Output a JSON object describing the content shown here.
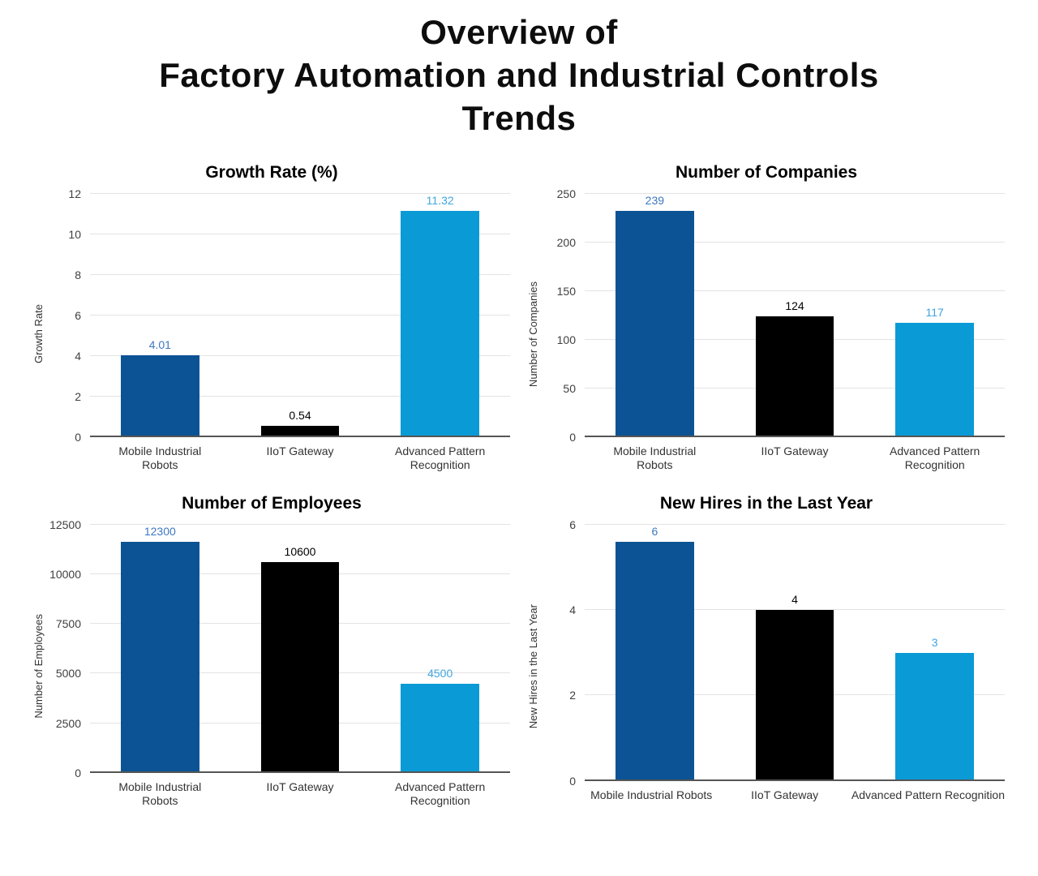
{
  "page_title": {
    "lines": [
      "Overview of",
      "Factory Automation and Industrial Controls",
      "Trends"
    ]
  },
  "colors": {
    "bar_dark_blue": "#0b5394",
    "bar_black": "#000000",
    "bar_light_blue": "#0a9ad6",
    "annotation_dark_blue": "#3d78c2",
    "annotation_black": "#000000",
    "annotation_light_blue": "#3fa5df",
    "gridline": "#e3e3e3",
    "axis_line": "#555555",
    "tick_text": "#404040",
    "category_text": "#333333"
  },
  "chart_data": [
    {
      "type": "bar",
      "title": "Growth Rate (%)",
      "ylabel": "Growth Rate",
      "xlabel": "",
      "categories": [
        "Mobile Industrial Robots",
        "IIoT Gateway",
        "Advanced Pattern Recognition"
      ],
      "values": [
        4.01,
        0.54,
        11.32
      ],
      "value_labels": [
        "4.01",
        "0.54",
        "11.32"
      ],
      "ylim": [
        0,
        12
      ],
      "yticks": [
        0,
        2,
        4,
        6,
        8,
        10,
        12
      ],
      "grid": true,
      "legend": "none",
      "bar_colors": [
        "#0b5394",
        "#000000",
        "#0a9ad6"
      ],
      "label_colors": [
        "#3d78c2",
        "#000000",
        "#3fa5df"
      ],
      "x_labels_nowrap": false
    },
    {
      "type": "bar",
      "title": "Number of Companies",
      "ylabel": "Number of Companies",
      "xlabel": "",
      "categories": [
        "Mobile Industrial Robots",
        "IIoT Gateway",
        "Advanced Pattern Recognition"
      ],
      "values": [
        239,
        124,
        117
      ],
      "value_labels": [
        "239",
        "124",
        "117"
      ],
      "ylim": [
        0,
        250
      ],
      "yticks": [
        0,
        50,
        100,
        150,
        200,
        250
      ],
      "grid": true,
      "legend": "none",
      "bar_colors": [
        "#0b5394",
        "#000000",
        "#0a9ad6"
      ],
      "label_colors": [
        "#3d78c2",
        "#000000",
        "#3fa5df"
      ],
      "x_labels_nowrap": false
    },
    {
      "type": "bar",
      "title": "Number of Employees",
      "ylabel": "Number of Employees",
      "xlabel": "",
      "categories": [
        "Mobile Industrial Robots",
        "IIoT Gateway",
        "Advanced Pattern Recognition"
      ],
      "values": [
        12300,
        10600,
        4500
      ],
      "value_labels": [
        "12300",
        "10600",
        "4500"
      ],
      "ylim": [
        0,
        12500
      ],
      "yticks": [
        0,
        2500,
        5000,
        7500,
        10000,
        12500
      ],
      "grid": true,
      "legend": "none",
      "bar_colors": [
        "#0b5394",
        "#000000",
        "#0a9ad6"
      ],
      "label_colors": [
        "#3d78c2",
        "#000000",
        "#3fa5df"
      ],
      "x_labels_nowrap": false
    },
    {
      "type": "bar",
      "title": "New Hires in the Last Year",
      "ylabel": "New Hires in the Last Year",
      "xlabel": "",
      "categories": [
        "Mobile Industrial Robots",
        "IIoT Gateway",
        "Advanced Pattern Recognition"
      ],
      "values": [
        6,
        4,
        3
      ],
      "value_labels": [
        "6",
        "4",
        "3"
      ],
      "ylim": [
        0,
        6
      ],
      "yticks": [
        0,
        2,
        4,
        6
      ],
      "grid": true,
      "legend": "none",
      "bar_colors": [
        "#0b5394",
        "#000000",
        "#0a9ad6"
      ],
      "label_colors": [
        "#3d78c2",
        "#000000",
        "#3fa5df"
      ],
      "x_labels_nowrap": true
    }
  ]
}
